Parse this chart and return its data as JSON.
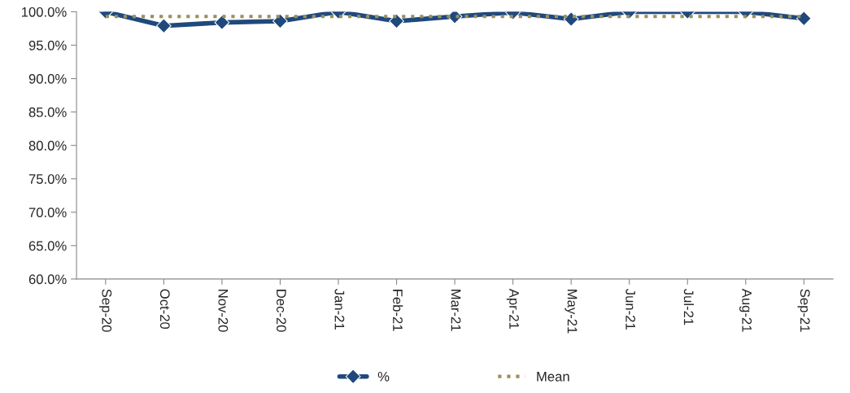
{
  "chart_data": {
    "type": "line",
    "categories": [
      "Sep-20",
      "Oct-20",
      "Nov-20",
      "Dec-20",
      "Jan-21",
      "Feb-21",
      "Mar-21",
      "Apr-21",
      "May-21",
      "Jun-21",
      "Jul-21",
      "Aug-21",
      "Sep-21"
    ],
    "series": [
      {
        "name": "%",
        "color": "#1f497d",
        "marker": "diamond",
        "line_style": "solid",
        "values": [
          100.0,
          97.9,
          98.4,
          98.6,
          100.0,
          98.6,
          99.3,
          99.9,
          98.9,
          100.0,
          100.0,
          100.0,
          99.0
        ]
      },
      {
        "name": "Mean",
        "color": "#9c8f5a",
        "marker": "none",
        "line_style": "dotted",
        "values": [
          99.3,
          99.3,
          99.3,
          99.3,
          99.3,
          99.3,
          99.3,
          99.3,
          99.3,
          99.3,
          99.3,
          99.3,
          99.3
        ]
      }
    ],
    "ylim": [
      60,
      100
    ],
    "yticks": [
      {
        "value": 60,
        "label": "60.0%"
      },
      {
        "value": 65,
        "label": "65.0%"
      },
      {
        "value": 70,
        "label": "70.0%"
      },
      {
        "value": 75,
        "label": "75.0%"
      },
      {
        "value": 80,
        "label": "80.0%"
      },
      {
        "value": 85,
        "label": "85.0%"
      },
      {
        "value": 90,
        "label": "90.0%"
      },
      {
        "value": 95,
        "label": "95.0%"
      },
      {
        "value": 100,
        "label": "100.0%"
      }
    ],
    "grid": false,
    "legend": "bottom"
  }
}
